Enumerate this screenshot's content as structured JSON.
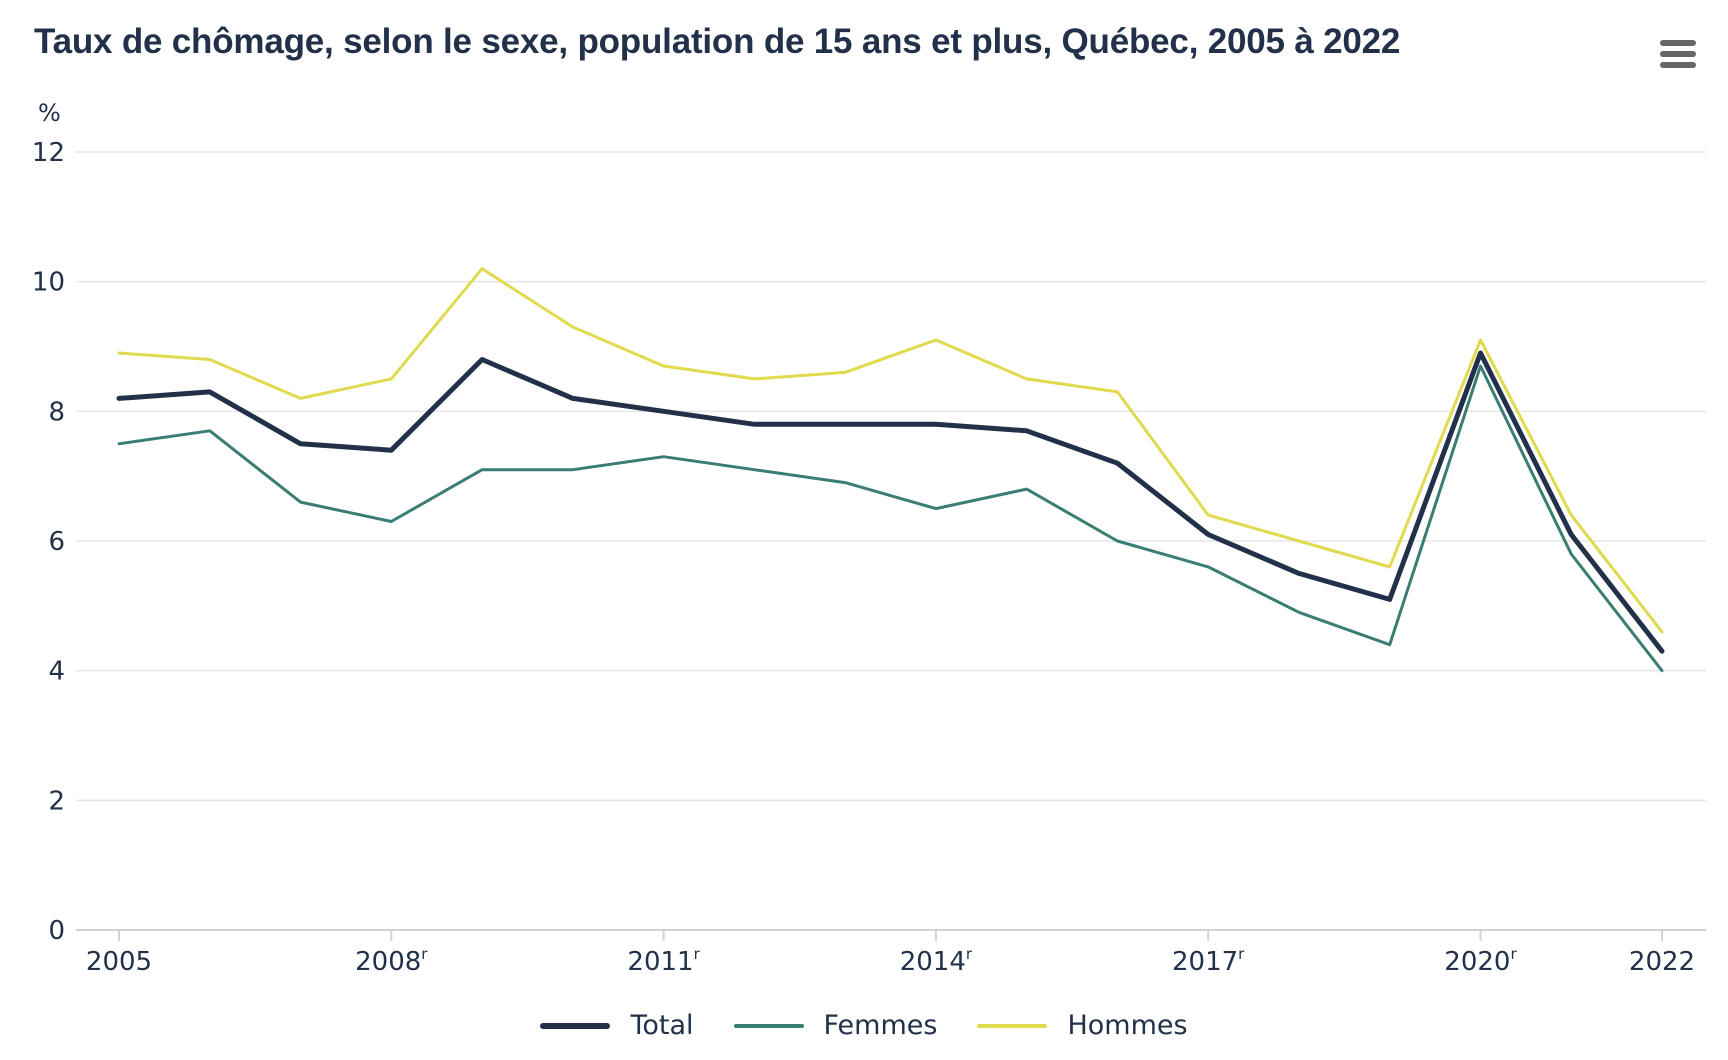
{
  "title": "Taux de chômage, selon le sexe, population de 15 ans et plus, Québec, 2005 à 2022",
  "menu_icon": "hamburger-menu-icon",
  "chart_data": {
    "type": "line",
    "title": "Taux de chômage, selon le sexe, population de 15 ans et plus, Québec, 2005 à 2022",
    "ylabel": "%",
    "xlabel": "",
    "ylim": [
      0,
      12
    ],
    "yticks": [
      "0",
      "2",
      "4",
      "6",
      "8",
      "10",
      "12"
    ],
    "xlim": [
      2005,
      2022
    ],
    "xticks": [
      {
        "year": 2005,
        "label": "2005",
        "sup": ""
      },
      {
        "year": 2008,
        "label": "2008",
        "sup": "r"
      },
      {
        "year": 2011,
        "label": "2011",
        "sup": "r"
      },
      {
        "year": 2014,
        "label": "2014",
        "sup": "r"
      },
      {
        "year": 2017,
        "label": "2017",
        "sup": "r"
      },
      {
        "year": 2020,
        "label": "2020",
        "sup": "r"
      },
      {
        "year": 2022,
        "label": "2022",
        "sup": ""
      }
    ],
    "grid": true,
    "legend_position": "bottom-center",
    "x": [
      2005,
      2006,
      2007,
      2008,
      2009,
      2010,
      2011,
      2012,
      2013,
      2014,
      2015,
      2016,
      2017,
      2018,
      2019,
      2020,
      2021,
      2022
    ],
    "series": [
      {
        "name": "Total",
        "color": "#223149",
        "values": [
          8.2,
          8.3,
          7.5,
          7.4,
          8.8,
          8.2,
          8.0,
          7.8,
          7.8,
          7.8,
          7.7,
          7.2,
          6.1,
          5.5,
          5.1,
          8.9,
          6.1,
          4.3
        ]
      },
      {
        "name": "Femmes",
        "color": "#3a7d73",
        "values": [
          7.5,
          7.7,
          6.6,
          6.3,
          7.1,
          7.1,
          7.3,
          7.1,
          6.9,
          6.5,
          6.8,
          6.0,
          5.6,
          4.9,
          4.4,
          8.7,
          5.8,
          4.0
        ]
      },
      {
        "name": "Hommes",
        "color": "#e0da4e",
        "values": [
          8.9,
          8.8,
          8.2,
          8.5,
          10.2,
          9.3,
          8.7,
          8.5,
          8.6,
          9.1,
          8.5,
          8.3,
          6.4,
          6.0,
          5.6,
          9.1,
          6.4,
          4.6
        ]
      }
    ]
  }
}
